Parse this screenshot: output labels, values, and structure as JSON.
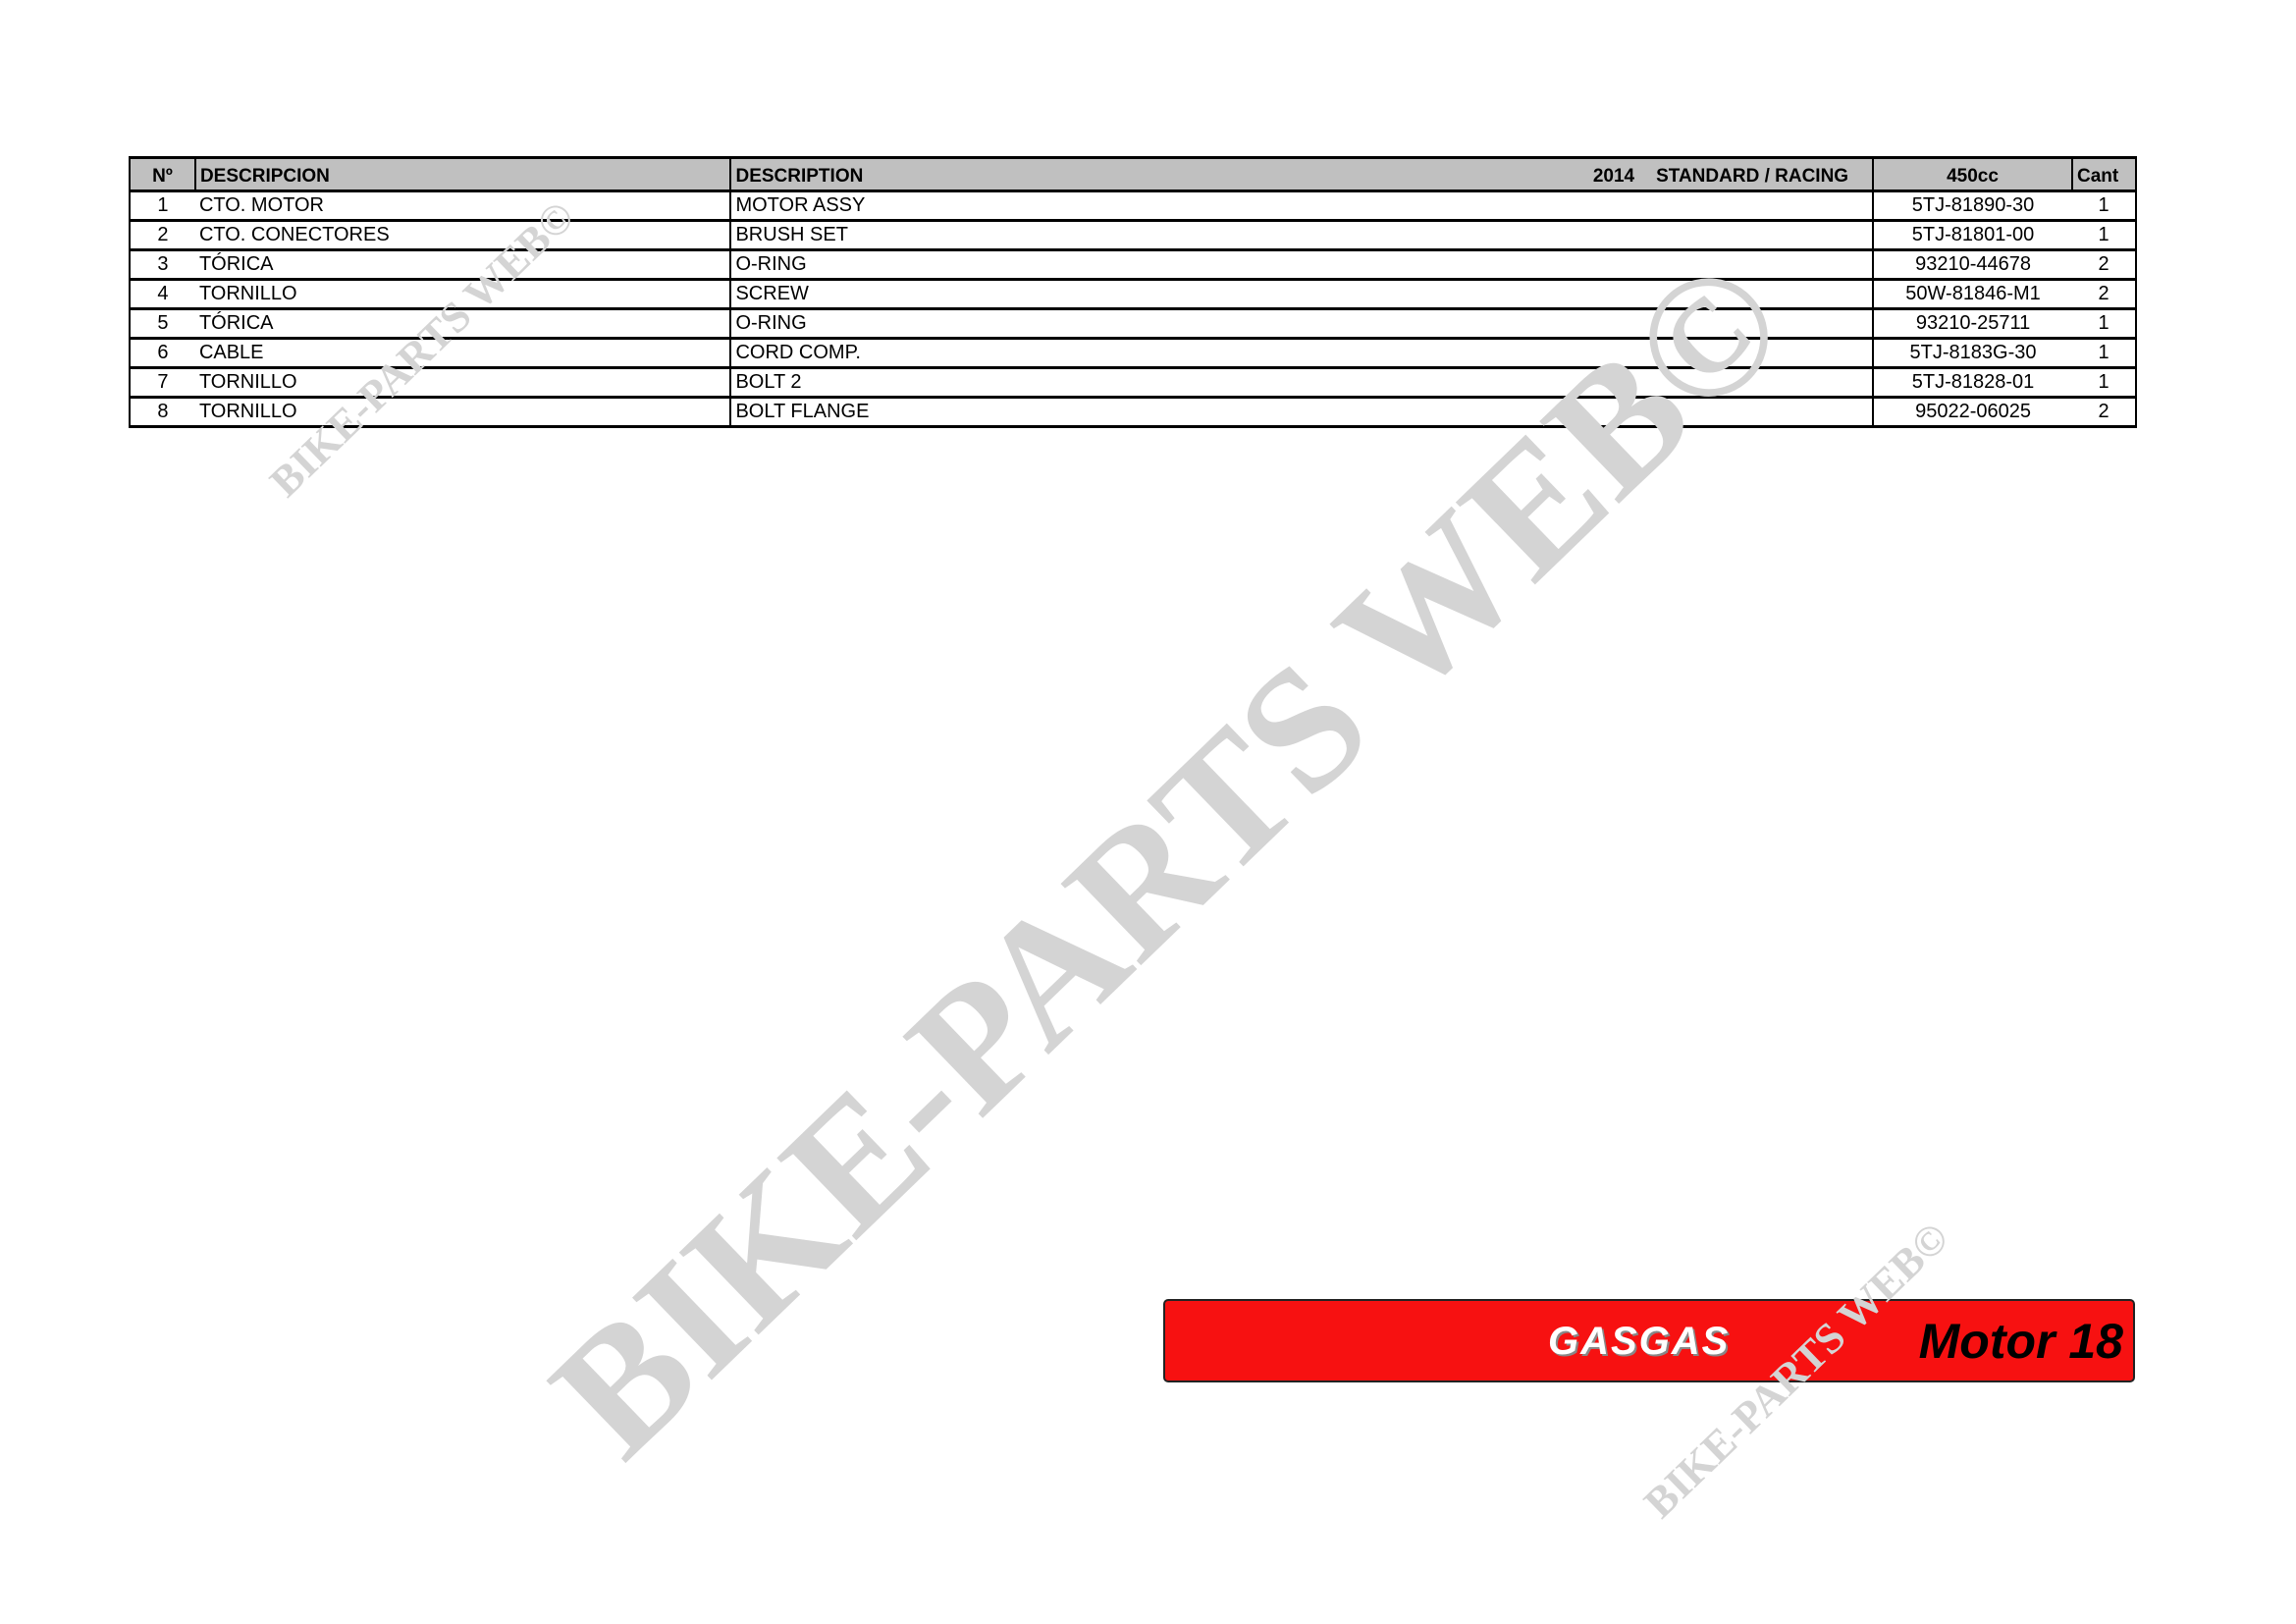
{
  "table": {
    "headers": {
      "no": "Nº",
      "descripcion": "DESCRIPCION",
      "description": "DESCRIPTION",
      "year": "2014",
      "version": "STANDARD / RACING",
      "model": "450cc",
      "qty": "Cant"
    },
    "rows": [
      {
        "no": "1",
        "es": "CTO. MOTOR",
        "en": "MOTOR ASSY",
        "ref": "5TJ-81890-30",
        "qty": "1"
      },
      {
        "no": "2",
        "es": "CTO. CONECTORES",
        "en": "BRUSH SET",
        "ref": "5TJ-81801-00",
        "qty": "1"
      },
      {
        "no": "3",
        "es": "TÓRICA",
        "en": "O-RING",
        "ref": "93210-44678",
        "qty": "2"
      },
      {
        "no": "4",
        "es": "TORNILLO",
        "en": "SCREW",
        "ref": "50W-81846-M1",
        "qty": "2"
      },
      {
        "no": "5",
        "es": "TÓRICA",
        "en": "O-RING",
        "ref": "93210-25711",
        "qty": "1"
      },
      {
        "no": "6",
        "es": "CABLE",
        "en": "CORD COMP.",
        "ref": "5TJ-8183G-30",
        "qty": "1"
      },
      {
        "no": "7",
        "es": "TORNILLO",
        "en": "BOLT 2",
        "ref": "5TJ-81828-01",
        "qty": "1"
      },
      {
        "no": "8",
        "es": "TORNILLO",
        "en": "BOLT FLANGE",
        "ref": "95022-06025",
        "qty": "2"
      }
    ]
  },
  "banner": {
    "brand": "GASGAS",
    "title": "Motor 18",
    "color": "#f71111"
  },
  "watermark": "BIKE-PARTS WEB©"
}
